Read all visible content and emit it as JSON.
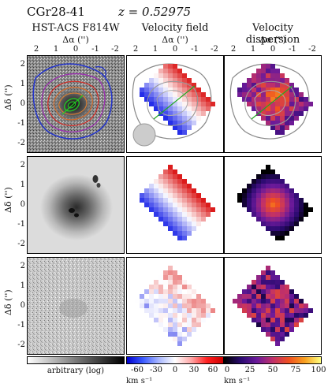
{
  "title": {
    "object": "CGr28-41",
    "redshift": "z = 0.52975"
  },
  "columns": [
    {
      "header": "HST-ACS F814W",
      "xlabel": "Δα ('')"
    },
    {
      "header": "Velocity field",
      "xlabel": "Δα ('')"
    },
    {
      "header": "Velocity dispersion",
      "xlabel": "Δα ('')"
    }
  ],
  "x_ticks": [
    "2",
    "1",
    "0",
    "-1",
    "-2"
  ],
  "y_ticks": [
    "2",
    "1",
    "0",
    "-1",
    "-2"
  ],
  "ylabel": "Δδ ('')",
  "colorbars": [
    {
      "label": "arbitrary (log)",
      "ticks": []
    },
    {
      "label": "km s⁻¹",
      "ticks": [
        "-60",
        "-30",
        "0",
        "30",
        "60"
      ]
    },
    {
      "label": "km s⁻¹",
      "ticks": [
        "0",
        "25",
        "50",
        "75",
        "100"
      ]
    }
  ],
  "colors": {
    "velocity_neg": "#1a1aff",
    "velocity_pos": "#e00000",
    "contour_green": "#22aa22",
    "contour_red": "#d0302a",
    "contour_blue": "#2233cc"
  }
}
